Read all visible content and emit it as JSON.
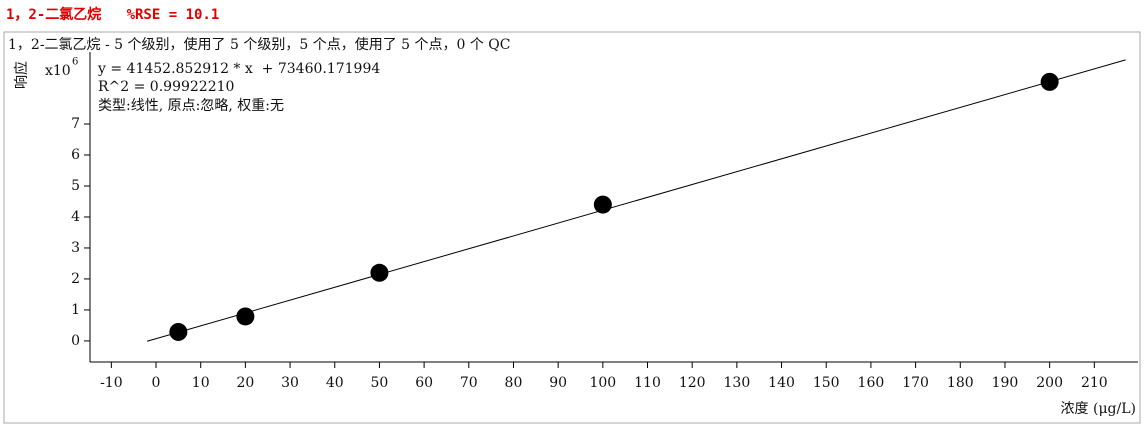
{
  "chart_data": {
    "type": "scatter",
    "title": "1，2-二氯乙烷   %RSE = 10.1",
    "subtitle": "1，2-二氯乙烷 - 5 个级别，使用了 5 个级别，5 个点，使用了 5 个点，0 个 QC",
    "annotations": [
      "y = 41452.852912 * x  + 73460.171994",
      "R^2 = 0.99922210",
      "类型:线性, 原点:忽略, 权重:无"
    ],
    "y_label": "响应",
    "y_multiplier": "x10",
    "y_exponent": "6",
    "x_label": "浓度 (μg/L)",
    "series": [
      {
        "x": [
          5,
          20,
          50,
          100,
          200
        ],
        "values": [
          0.29,
          0.79,
          2.2,
          4.4,
          8.36
        ],
        "color": "#000000"
      }
    ],
    "fit_line": {
      "x": [
        -2,
        217
      ],
      "values": [
        -0.01,
        9.07
      ],
      "color": "#000000"
    },
    "xlim": [
      -15,
      220
    ],
    "ylim": [
      -0.68,
      9.55
    ],
    "xticks": [
      -10,
      0,
      10,
      20,
      30,
      40,
      50,
      60,
      70,
      80,
      90,
      100,
      110,
      120,
      130,
      140,
      150,
      160,
      170,
      180,
      190,
      200,
      210
    ],
    "yticks": [
      0,
      1,
      2,
      3,
      4,
      5,
      6,
      7
    ]
  }
}
